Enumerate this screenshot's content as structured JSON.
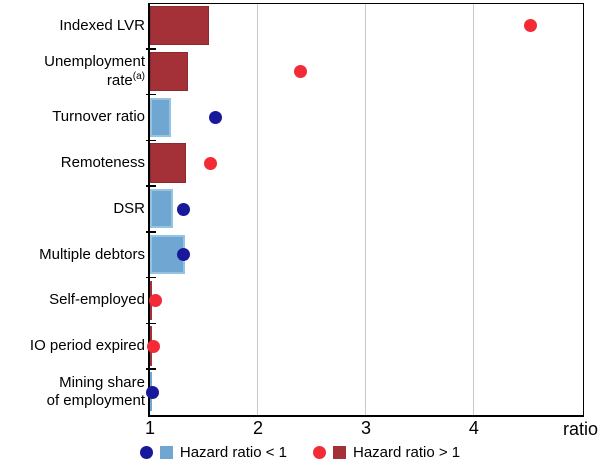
{
  "chart_data": {
    "type": "bar",
    "orientation": "horizontal",
    "title": "",
    "x_axis": {
      "label": "ratio",
      "min": 1,
      "max": 5.01,
      "ticks": [
        "1",
        "2",
        "3",
        "4"
      ],
      "tick_values": [
        1,
        2,
        3,
        4
      ],
      "gridlines": [
        2,
        3,
        4
      ]
    },
    "rows": [
      {
        "label_lines": [
          "Indexed LVR"
        ],
        "footnote": "",
        "group": "gt1",
        "bar": 1.55,
        "dot": 4.52
      },
      {
        "label_lines": [
          "Unemployment",
          "rate"
        ],
        "footnote": "(a)",
        "group": "gt1",
        "bar": 1.35,
        "dot": 2.39
      },
      {
        "label_lines": [
          "Turnover ratio"
        ],
        "footnote": "",
        "group": "lt1",
        "bar": 1.19,
        "dot": 1.61
      },
      {
        "label_lines": [
          "Remoteness"
        ],
        "footnote": "",
        "group": "gt1",
        "bar": 1.33,
        "dot": 1.56
      },
      {
        "label_lines": [
          "DSR"
        ],
        "footnote": "",
        "group": "lt1",
        "bar": 1.21,
        "dot": 1.31
      },
      {
        "label_lines": [
          "Multiple debtors"
        ],
        "footnote": "",
        "group": "lt1",
        "bar": 1.32,
        "dot": 1.31
      },
      {
        "label_lines": [
          "Self-employed"
        ],
        "footnote": "",
        "group": "gt1",
        "bar": 1.02,
        "dot": 1.05
      },
      {
        "label_lines": [
          "IO period expired"
        ],
        "footnote": "",
        "group": "gt1",
        "bar": 1.02,
        "dot": 1.03
      },
      {
        "label_lines": [
          "Mining share",
          "of employment"
        ],
        "footnote": "",
        "group": "lt1",
        "bar": 1.01,
        "dot": 1.02
      }
    ],
    "legend": [
      {
        "group": "lt1",
        "label": "Hazard ratio < 1"
      },
      {
        "group": "gt1",
        "label": "Hazard ratio > 1"
      }
    ],
    "legend_position": "bottom-center",
    "grid": "vertical-only"
  },
  "colors": {
    "bar_lt1": "#6FA6D2",
    "bar_lt1_border": "#97C3E3",
    "bar_gt1": "#A43038",
    "bar_gt1_border": "#8F2830",
    "dot_lt1": "#18189B",
    "dot_gt1": "#F32B37",
    "gridline": "#C9C9C9",
    "axis": "#000000",
    "text": "#000000"
  }
}
